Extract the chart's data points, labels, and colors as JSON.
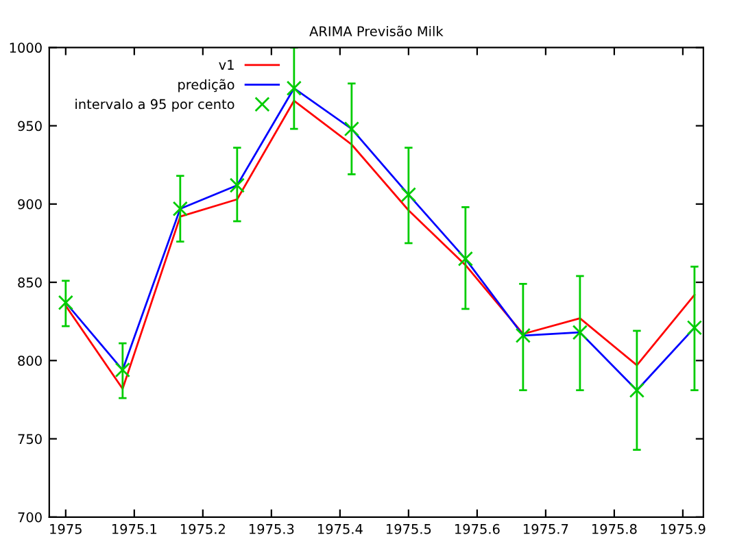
{
  "chart_data": {
    "type": "line",
    "title": "ARIMA Previsão Milk",
    "x": [
      1975,
      1975.083,
      1975.167,
      1975.25,
      1975.333,
      1975.417,
      1975.5,
      1975.583,
      1975.667,
      1975.75,
      1975.833,
      1975.917
    ],
    "series": [
      {
        "name": "v1",
        "color": "#ff0000",
        "values": [
          835,
          782,
          892,
          903,
          966,
          938,
          896,
          861,
          817,
          827,
          797,
          842
        ]
      },
      {
        "name": "predição",
        "color": "#0000ff",
        "values": [
          837,
          794,
          897,
          912,
          974,
          948,
          906,
          865,
          816,
          818,
          781,
          821
        ]
      },
      {
        "name": "intervalo a 95 por cento",
        "type": "scatter",
        "color": "#00cc00",
        "marker": "cross",
        "values": [
          837,
          794,
          897,
          912,
          974,
          948,
          906,
          865,
          816,
          818,
          781,
          821
        ],
        "errors": [
          [
            822,
            851
          ],
          [
            776,
            811
          ],
          [
            876,
            918
          ],
          [
            889,
            936
          ],
          [
            948,
            1000
          ],
          [
            919,
            977
          ],
          [
            875,
            936
          ],
          [
            833,
            898
          ],
          [
            781,
            849
          ],
          [
            781,
            854
          ],
          [
            743,
            819
          ],
          [
            781,
            860
          ]
        ]
      }
    ],
    "xlim": [
      1974.976,
      1975.93
    ],
    "xticks": [
      1975,
      1975.1,
      1975.2,
      1975.3,
      1975.4,
      1975.5,
      1975.6,
      1975.7,
      1975.8,
      1975.9
    ],
    "ylim": [
      700,
      1000
    ],
    "yticks": [
      700,
      750,
      800,
      850,
      900,
      950,
      1000
    ],
    "grid": false,
    "legend": "top left",
    "line_style": "solid"
  }
}
